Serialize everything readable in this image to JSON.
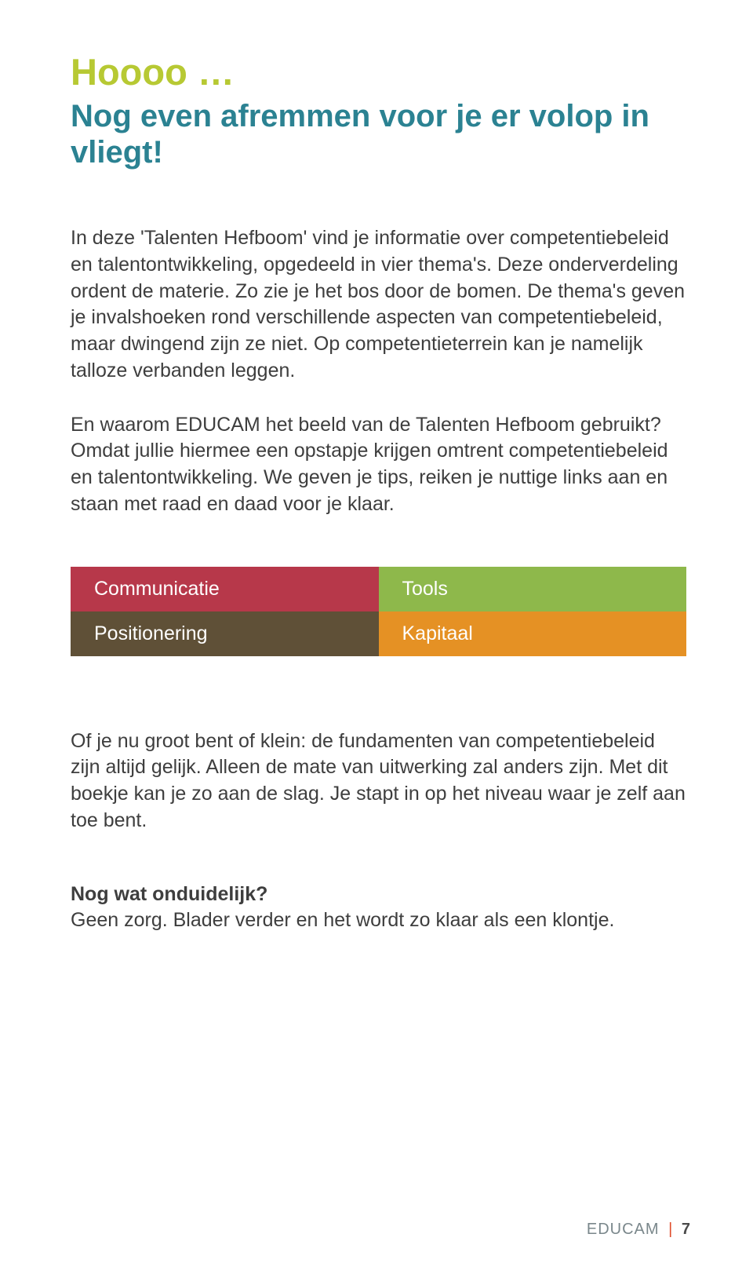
{
  "colors": {
    "lime": "#b7c933",
    "teal": "#2b8292",
    "body": "#3e3e3e",
    "quad_red": "#b7384a",
    "quad_green": "#8eb84b",
    "quad_brown": "#5f5037",
    "quad_orange": "#e59124",
    "footer_text": "#4a4a4a",
    "footer_brand": "#7a878b",
    "footer_sep": "#e04c2b"
  },
  "fontsizes": {
    "h1": 47,
    "h2": 40,
    "body": 25,
    "footer": 20
  },
  "heading": {
    "line1": "Hoooo …",
    "line2": "Nog even afremmen voor je er volop in vliegt!"
  },
  "para1": "In deze 'Talenten Hefboom' vind je informatie over competentiebeleid en talentontwikkeling, opgedeeld in vier thema's. Deze onderverdeling ordent de materie. Zo zie je het bos door de bomen. De thema's geven je invalshoeken rond verschillende aspecten van competentiebeleid, maar dwingend zijn ze niet. Op competentieterrein kan je namelijk talloze verbanden leggen.",
  "para2": "En waarom EDUCAM het beeld van de Talenten Hefboom gebruikt? Omdat jullie hiermee een opstapje krijgen omtrent competentiebeleid en talentontwikkeling. We geven je tips, reiken je nuttige links aan en staan met raad en daad voor je klaar.",
  "quad": {
    "top_left": "Communicatie",
    "top_right": "Tools",
    "bottom_left": "Positionering",
    "bottom_right": "Kapitaal"
  },
  "para3": "Of je nu groot bent of klein: de fundamenten van competentiebeleid zijn altijd gelijk. Alleen de mate van uitwerking zal anders zijn. Met dit boekje kan je zo aan de slag. Je stapt in op het niveau waar je zelf aan toe bent.",
  "para4_title": "Nog wat onduidelijk?",
  "para4_body": "Geen zorg. Blader verder en het wordt zo klaar als een klontje.",
  "footer": {
    "brand": "EDUCAM",
    "sep": "|",
    "page": "7"
  }
}
